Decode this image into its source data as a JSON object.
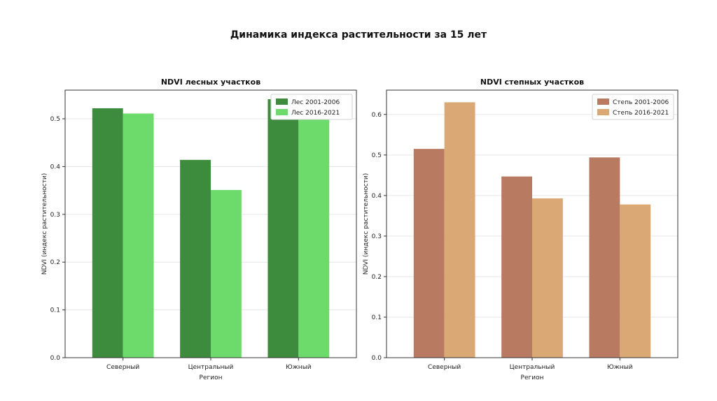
{
  "suptitle": "Динамика индекса растительности за 15 лет",
  "chart_data": [
    {
      "type": "bar",
      "title": "NDVI лесных участков",
      "xlabel": "Регион",
      "ylabel": "NDVI (индекс растительности)",
      "categories": [
        "Северный",
        "Центральный",
        "Южный"
      ],
      "ylim": [
        0,
        0.56
      ],
      "yticks": [
        0.0,
        0.1,
        0.2,
        0.3,
        0.4,
        0.5
      ],
      "ytick_labels": [
        "0.0",
        "0.1",
        "0.2",
        "0.3",
        "0.4",
        "0.5"
      ],
      "grid": true,
      "legend_position": "top-right",
      "series": [
        {
          "name": "Лес 2001-2006",
          "values": [
            0.522,
            0.414,
            0.541
          ],
          "color": "#3d8b3d"
        },
        {
          "name": "Лес 2016-2021",
          "values": [
            0.511,
            0.351,
            0.507
          ],
          "color": "#6cdb6c"
        }
      ]
    },
    {
      "type": "bar",
      "title": "NDVI степных участков",
      "xlabel": "Регион",
      "ylabel": "NDVI (индекс растительности)",
      "categories": [
        "Северный",
        "Центральный",
        "Южный"
      ],
      "ylim": [
        0,
        0.66
      ],
      "yticks": [
        0.0,
        0.1,
        0.2,
        0.3,
        0.4,
        0.5,
        0.6
      ],
      "ytick_labels": [
        "0.0",
        "0.1",
        "0.2",
        "0.3",
        "0.4",
        "0.5",
        "0.6"
      ],
      "grid": true,
      "legend_position": "top-right",
      "series": [
        {
          "name": "Степь 2001-2006",
          "values": [
            0.515,
            0.447,
            0.494
          ],
          "color": "#b87a60"
        },
        {
          "name": "Степь 2016-2021",
          "values": [
            0.63,
            0.393,
            0.378
          ],
          "color": "#d9a874"
        }
      ]
    }
  ]
}
